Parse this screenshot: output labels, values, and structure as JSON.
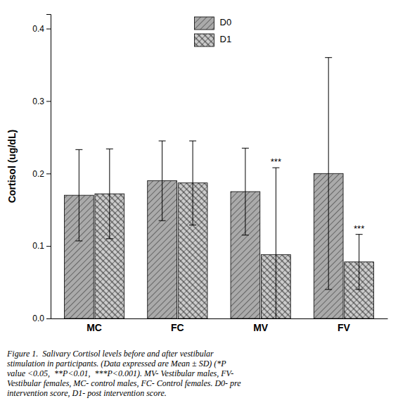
{
  "chart_data": {
    "type": "bar",
    "categories": [
      "MC",
      "FC",
      "MV",
      "FV"
    ],
    "series": [
      {
        "name": "D0",
        "color": "#aaaaaa",
        "values": [
          0.17,
          0.19,
          0.175,
          0.2
        ],
        "errors": [
          0.063,
          0.055,
          0.06,
          0.16
        ]
      },
      {
        "name": "D1",
        "color": "#cccccc",
        "values": [
          0.172,
          0.187,
          0.088,
          0.078
        ],
        "errors": [
          0.062,
          0.058,
          0.12,
          0.038
        ]
      }
    ],
    "ylabel": "Cortisol (ug/dL)",
    "ylim": [
      0.0,
      0.42
    ],
    "yticks": [
      {
        "value": 0.0,
        "label": "0.0"
      },
      0.1,
      0.2,
      0.3,
      0.4
    ],
    "annotations": [
      {
        "text": "***",
        "category": "MV",
        "series": "D1"
      },
      {
        "text": "***",
        "category": "FV",
        "series": "D1"
      }
    ],
    "legend": "upper center",
    "grid": false,
    "caption": "Figure 1.  Salivary Cortisol levels before and after vestibular\nstimulation in participants. (Data expressed are Mean ± SD) (*P\nvalue <0.05,  **P<0.01,  ***P<0.001). MV- Vestibular males, FV-\nVestibular females, MC- control males, FC- Control females. D0- pre\nintervention score, D1- post intervention score."
  }
}
